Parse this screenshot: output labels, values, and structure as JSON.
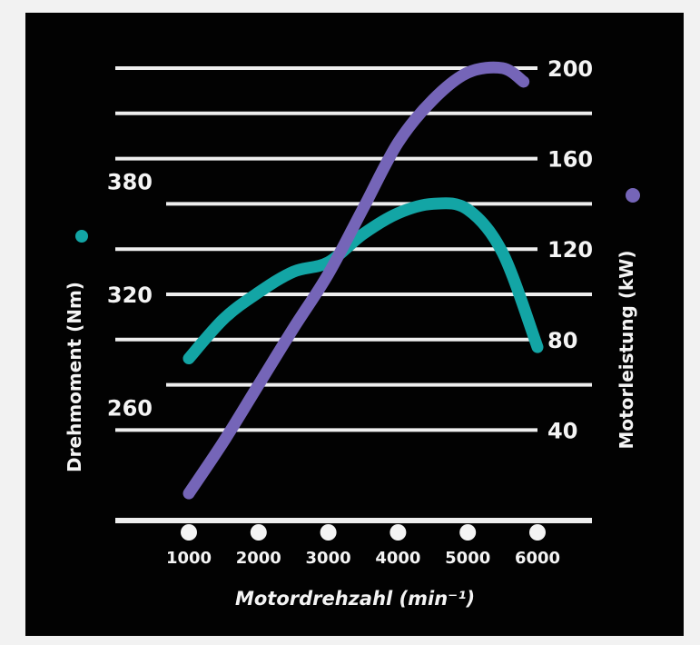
{
  "chart_data": {
    "type": "line",
    "xlabel": "Motordrehzahl (min⁻¹)",
    "x_ticks": [
      1000,
      2000,
      3000,
      4000,
      5000,
      6000
    ],
    "xlim": [
      1000,
      6000
    ],
    "left_axis": {
      "label": "Drehmoment (Nm)",
      "ticks": [
        260,
        320,
        380
      ],
      "ylim": [
        200,
        440
      ],
      "color": "#13a5a5"
    },
    "right_axis": {
      "label": "Motorleistung (kW)",
      "ticks": [
        40,
        80,
        120,
        160,
        200
      ],
      "ylim": [
        0,
        200
      ],
      "color": "#7565b8"
    },
    "grid": true,
    "series": [
      {
        "axis": "left",
        "color": "#13a5a5",
        "x": [
          1000,
          1500,
          2000,
          2500,
          3000,
          3500,
          4000,
          4500,
          5000,
          5500,
          6000
        ],
        "y": [
          286,
          307,
          321,
          332,
          337,
          352,
          363,
          368,
          365,
          342,
          292
        ]
      },
      {
        "axis": "right",
        "color": "#7565b8",
        "x": [
          1000,
          1500,
          2000,
          2500,
          3000,
          3500,
          4000,
          4500,
          5000,
          5500,
          5800
        ],
        "y": [
          12,
          35,
          60,
          85,
          109,
          138,
          167,
          186,
          198,
          200,
          194
        ]
      }
    ]
  }
}
